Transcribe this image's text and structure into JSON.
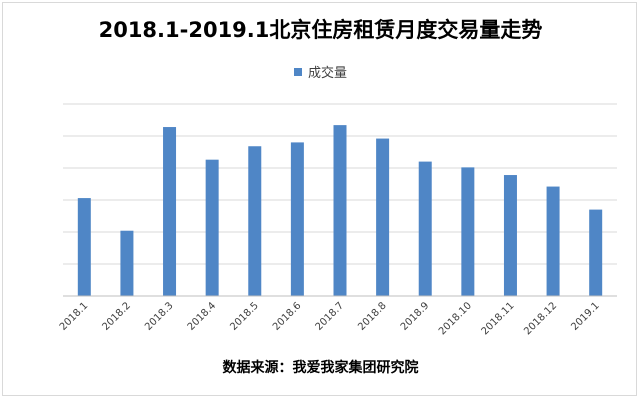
{
  "chart_data": {
    "type": "bar",
    "title": "2018.1-2019.1北京住房租赁月度交易量走势",
    "xlabel": "",
    "ylabel": "",
    "categories": [
      "2018.1",
      "2018.2",
      "2018.3",
      "2018.4",
      "2018.5",
      "2018.6",
      "2018.7",
      "2018.8",
      "2018.9",
      "2018.10",
      "2018.11",
      "2018.12",
      "2019.1"
    ],
    "series": [
      {
        "name": "成交量",
        "values": [
          0.51,
          0.34,
          0.88,
          0.71,
          0.78,
          0.8,
          0.89,
          0.82,
          0.7,
          0.67,
          0.63,
          0.57,
          0.45
        ]
      }
    ],
    "ylim": [
      0,
      1
    ],
    "grid": true,
    "legend_position": "top-center",
    "y_tick_labels_shown": false,
    "bar_color": "#4f86c6",
    "grid_color": "#d9d9d9",
    "axis_color": "#bfbfbf"
  },
  "source_note": "数据来源：我爱我家集团研究院"
}
